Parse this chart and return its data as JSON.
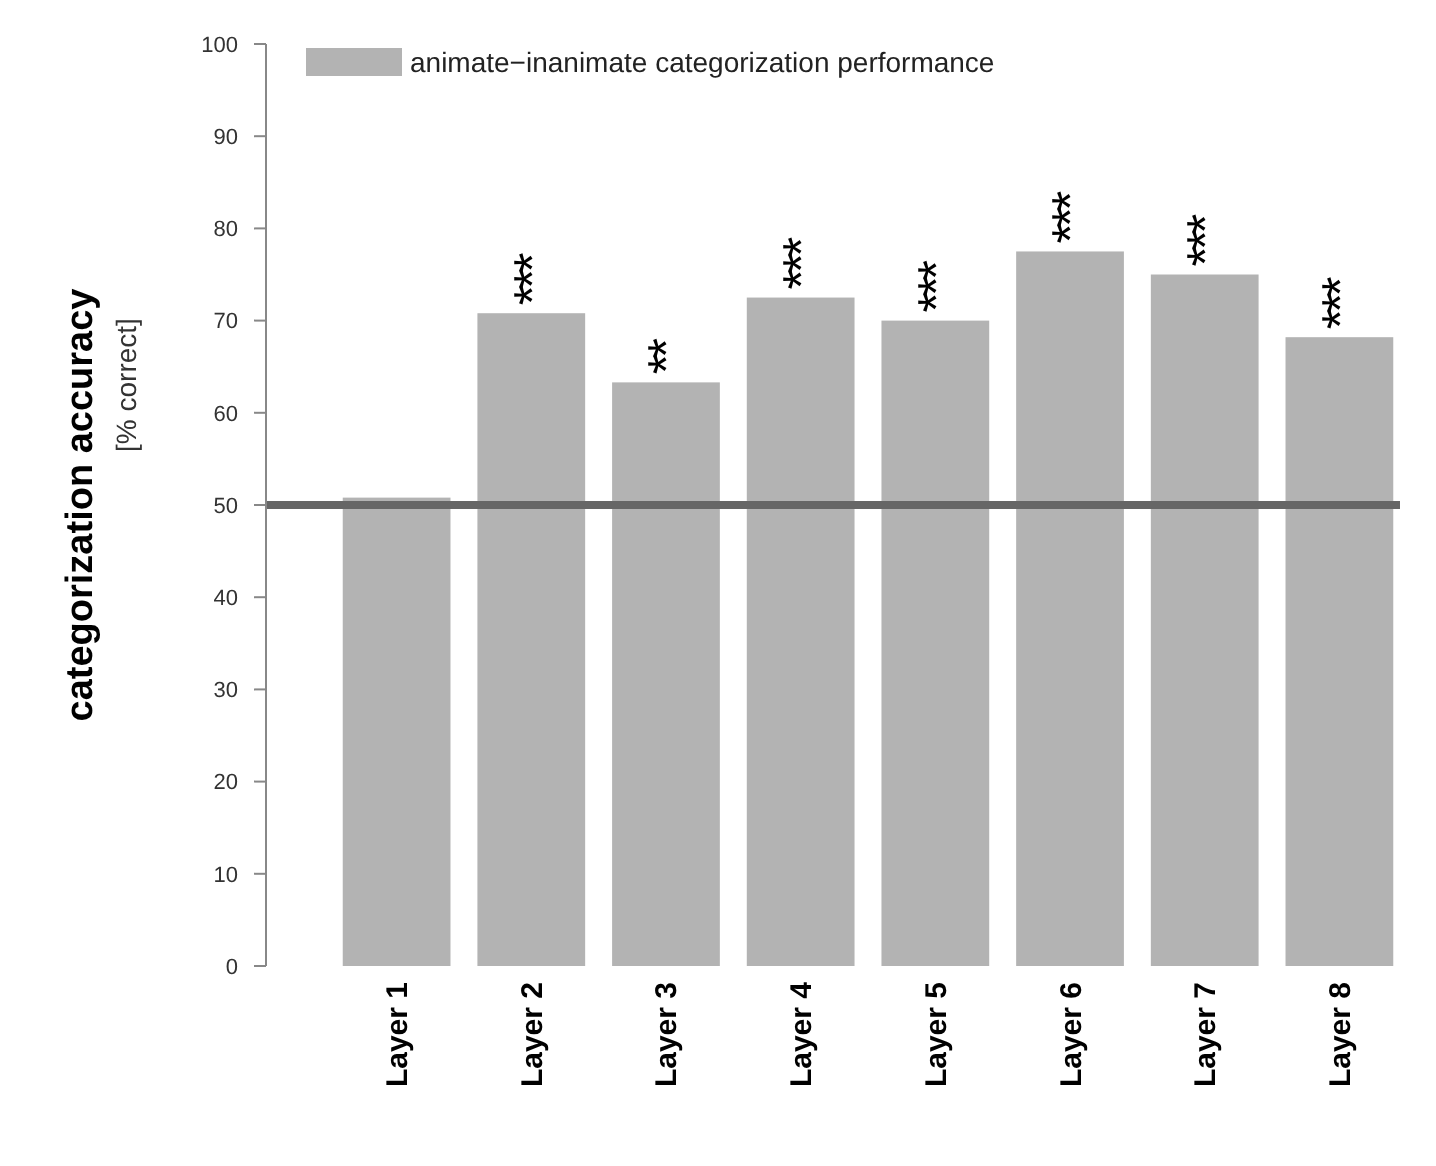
{
  "chart_data": {
    "type": "bar",
    "ylabel": "categorization accuracy\n[% correct]",
    "categories": [
      "Layer 1",
      "Layer 2",
      "Layer 3",
      "Layer 4",
      "Layer 5",
      "Layer 6",
      "Layer 7",
      "Layer 8"
    ],
    "series": [
      {
        "name": "animate−inanimate categorization performance",
        "color": "#b3b3b3",
        "values": [
          50.8,
          70.8,
          63.3,
          72.5,
          70,
          77.5,
          75,
          68.2
        ]
      }
    ],
    "ylim": [
      0,
      100
    ],
    "yticks": [
      0,
      10,
      20,
      30,
      40,
      50,
      60,
      70,
      80,
      90,
      100
    ],
    "ref_lines": [
      {
        "axis": "y",
        "value": 50,
        "color": "#666666"
      }
    ],
    "annotations": [
      {
        "text": "***",
        "x": "Layer 2",
        "y": 70.8
      },
      {
        "text": "**",
        "x": "Layer 3",
        "y": 63.3
      },
      {
        "text": "***",
        "x": "Layer 4",
        "y": 72.5
      },
      {
        "text": "***",
        "x": "Layer 5",
        "y": 70
      },
      {
        "text": "***",
        "x": "Layer 6",
        "y": 77.5
      },
      {
        "text": "***",
        "x": "Layer 7",
        "y": 75
      },
      {
        "text": "***",
        "x": "Layer 8",
        "y": 68.2
      }
    ],
    "legend": "top left",
    "grid": false
  }
}
